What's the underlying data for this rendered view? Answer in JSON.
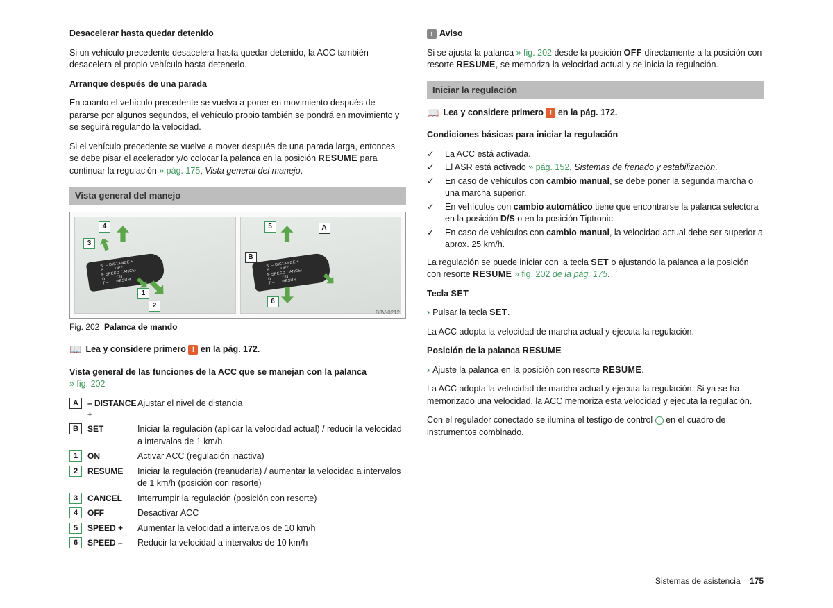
{
  "colors": {
    "link": "#3a9b5c",
    "warn_bg": "#e85c2c",
    "section_bg": "#bdbdbd",
    "text": "#1a1a1a",
    "arrow_green": "#5aa648"
  },
  "left": {
    "h1": "Desacelerar hasta quedar detenido",
    "p1": "Si un vehículo precedente desacelera hasta quedar detenido, la ACC también desacelera el propio vehículo hasta detenerlo.",
    "h2": "Arranque después de una parada",
    "p2": "En cuanto el vehículo precedente se vuelva a poner en movimiento después de pararse por algunos segundos, el vehículo propio también se pondrá en movimiento y se seguirá regulando la velocidad.",
    "p3a": "Si el vehículo precedente se vuelve a mover después de una parada larga, entonces se debe pisar el acelerador y/o colocar la palanca en la posición ",
    "p3_resume": "RESUME",
    "p3b": " para continuar la regulación ",
    "p3_link": "» pág. 175",
    "p3c": ", ",
    "p3_it": "Vista general del manejo",
    "p3d": ".",
    "section1": "Vista general del manejo",
    "fig_code": "B3V-0212",
    "fig_num": "Fig. 202",
    "fig_title": "Palanca de mando",
    "read_first_a": "Lea y considere primero ",
    "read_first_b": " en la pág. 172.",
    "funcs_title": "Vista general de las funciones de la ACC que se manejan con la palanca ",
    "funcs_link": "» fig. 202",
    "rows": [
      {
        "key": "A",
        "type": "letter",
        "label": "– DISTANCE +",
        "desc": "Ajustar el nivel de distancia"
      },
      {
        "key": "B",
        "type": "letter",
        "label": "SET",
        "desc": "Iniciar la regulación (aplicar la velocidad actual) / reducir la velocidad a intervalos de 1 km/h"
      },
      {
        "key": "1",
        "type": "num",
        "label": "ON",
        "desc": "Activar ACC (regulación inactiva)"
      },
      {
        "key": "2",
        "type": "num",
        "label": "RESUME",
        "desc": "Iniciar la regulación (reanudarla) / aumentar la velocidad a intervalos de 1 km/h (posición con resorte)"
      },
      {
        "key": "3",
        "type": "num",
        "label": "CANCEL",
        "desc": "Interrumpir la regulación (posición con resorte)"
      },
      {
        "key": "4",
        "type": "num",
        "label": "OFF",
        "desc": "Desactivar ACC"
      },
      {
        "key": "5",
        "type": "num",
        "label": "SPEED +",
        "desc": "Aumentar la velocidad a intervalos de 10 km/h"
      },
      {
        "key": "6",
        "type": "num",
        "label": "SPEED –",
        "desc": "Reducir la velocidad a intervalos de 10 km/h"
      }
    ],
    "lever_text": "– DISTANCE +\nOFF\nCANCEL\nON\nRESUME"
  },
  "right": {
    "aviso_label": "Aviso",
    "aviso_a": "Si se ajusta la palanca ",
    "aviso_link": "» fig. 202",
    "aviso_b": " desde la posición ",
    "aviso_off": "OFF",
    "aviso_c": " directamente a la posición con resorte ",
    "aviso_resume": "RESUME",
    "aviso_d": ", se memoriza la velocidad actual y se inicia la regulación.",
    "section2": "Iniciar la regulación",
    "read_first_a": "Lea y considere primero ",
    "read_first_b": " en la pág. 172.",
    "cond_title": "Condiciones básicas para iniciar la regulación",
    "conds": [
      {
        "text_a": "La ACC está activada."
      },
      {
        "text_a": "El ASR está activado ",
        "link": "» pág. 152",
        "text_b": ", ",
        "it": "Sistemas de frenado y estabilización",
        "text_c": "."
      },
      {
        "text_a": "En caso de vehículos con ",
        "bold": "cambio manual",
        "text_b": ", se debe poner la segunda marcha o una marcha superior."
      },
      {
        "text_a": "En vehículos con ",
        "bold": "cambio automático",
        "text_b": " tiene que encontrarse la palanca selectora en la posición ",
        "bold2": "D/S",
        "text_c": " o en la posición Tiptronic."
      },
      {
        "text_a": "En caso de vehículos con ",
        "bold": "cambio manual",
        "text_b": ", la velocidad actual debe ser superior a aprox. 25 km/h."
      }
    ],
    "p4a": "La regulación se puede iniciar con la tecla ",
    "p4_set": "SET",
    "p4b": " o ajustando la palanca a la posición con resorte ",
    "p4_resume": "RESUME",
    "p4_link": " » fig. 202",
    "p4_it": " de la pág. 175",
    "p4c": ".",
    "h_tecla": "Tecla ",
    "h_tecla_set": "SET",
    "bullet1a": "Pulsar la tecla ",
    "bullet1b": "SET",
    "bullet1c": ".",
    "p5": "La ACC adopta la velocidad de marcha actual y ejecuta la regulación.",
    "h_pos": "Posición de la palanca ",
    "h_pos_resume": "RESUME",
    "bullet2a": "Ajuste la palanca en la posición con resorte ",
    "bullet2b": "RESUME",
    "bullet2c": ".",
    "p6": "La ACC adopta la velocidad de marcha actual y ejecuta la regulación. Si ya se ha memorizado una velocidad, la ACC memoriza esta velocidad y ejecuta la regulación.",
    "p7a": "Con el regulador conectado se ilumina el testigo de control ",
    "p7b": " en el cuadro de instrumentos combinado."
  },
  "footer": {
    "section": "Sistemas de asistencia",
    "page": "175"
  }
}
